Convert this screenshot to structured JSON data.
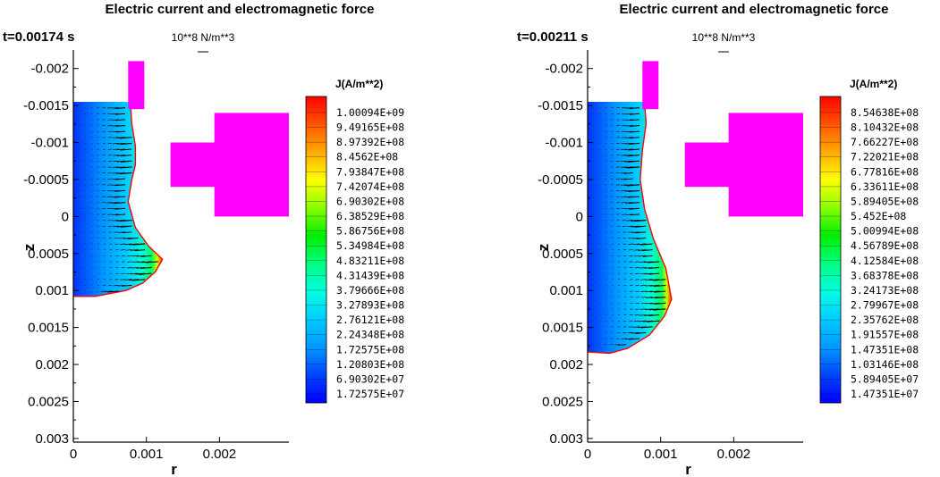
{
  "colors": {
    "coil": "#ff00ff",
    "boundary": "#ff0000",
    "vector": "#000000",
    "colormap": [
      "#0000ff",
      "#0044ff",
      "#0099ff",
      "#00ccff",
      "#00ffe0",
      "#00ff80",
      "#00ee00",
      "#88ff00",
      "#ffff00",
      "#ffaa00",
      "#ff5500",
      "#ff0000"
    ]
  },
  "chart_data": [
    {
      "type": "contour",
      "title": "Electric current and electromagnetic force",
      "time_label": "t=0.00174 s",
      "vector_reference_label": "10**8 N/m**3",
      "xlabel": "r",
      "ylabel": "z",
      "xlim": [
        0,
        0.00295
      ],
      "ylim": [
        0.00305,
        -0.00225
      ],
      "x_ticks": [
        0,
        0.001,
        0.002
      ],
      "x_tick_labels": [
        "0",
        "0.001",
        "0.002"
      ],
      "y_ticks": [
        -0.002,
        -0.0015,
        -0.001,
        -0.0005,
        0,
        0.0005,
        0.001,
        0.0015,
        0.002,
        0.0025,
        0.003
      ],
      "y_tick_labels": [
        "-0.002",
        "-0.0015",
        "-0.001",
        "-0.0005",
        "0",
        "0.0005",
        "0.001",
        "0.0015",
        "0.002",
        "0.0025",
        "0.003"
      ],
      "colorbar_title": "J(A/m**2)",
      "colorbar_levels": [
        "1.00094E+09",
        "9.49165E+08",
        "8.97392E+08",
        "8.4562E+08",
        "7.93847E+08",
        "7.42074E+08",
        "6.90302E+08",
        "6.38529E+08",
        "5.86756E+08",
        "5.34984E+08",
        "4.83211E+08",
        "4.31439E+08",
        "3.79666E+08",
        "3.27893E+08",
        "2.76121E+08",
        "2.24348E+08",
        "1.72575E+08",
        "1.20803E+08",
        "6.90302E+07",
        "1.72575E+07"
      ],
      "droplet_outline": [
        [
          0,
          -0.00155
        ],
        [
          0.00078,
          -0.00155
        ],
        [
          0.0008,
          -0.00125
        ],
        [
          0.00085,
          -0.00095
        ],
        [
          0.00085,
          -0.0007
        ],
        [
          0.0008,
          -0.0005
        ],
        [
          0.00075,
          -0.0002
        ],
        [
          0.00085,
          0.00015
        ],
        [
          0.00103,
          0.0004
        ],
        [
          0.00122,
          0.00058
        ],
        [
          0.00112,
          0.00075
        ],
        [
          0.00095,
          0.0009
        ],
        [
          0.00072,
          0.001
        ],
        [
          0.0003,
          0.00108
        ],
        [
          0,
          0.00108
        ]
      ],
      "coil_rects": [
        {
          "r": [
            0.00075,
            0.00097
          ],
          "z": [
            -0.0021,
            -0.00145
          ]
        },
        {
          "r": [
            0.00133,
            0.00285
          ],
          "z": [
            -0.001,
            -0.0004
          ]
        },
        {
          "r": [
            0.00193,
            0.00295
          ],
          "z": [
            -0.0014,
            0
          ]
        }
      ]
    },
    {
      "type": "contour",
      "title": "Electric current and electromagnetic force",
      "time_label": "t=0.00211 s",
      "vector_reference_label": "10**8 N/m**3",
      "xlabel": "r",
      "ylabel": "z",
      "xlim": [
        0,
        0.00295
      ],
      "ylim": [
        0.00305,
        -0.00225
      ],
      "x_ticks": [
        0,
        0.001,
        0.002
      ],
      "x_tick_labels": [
        "0",
        "0.001",
        "0.002"
      ],
      "y_ticks": [
        -0.002,
        -0.0015,
        -0.001,
        -0.0005,
        0,
        0.0005,
        0.001,
        0.0015,
        0.002,
        0.0025,
        0.003
      ],
      "y_tick_labels": [
        "-0.002",
        "-0.0015",
        "-0.001",
        "-0.0005",
        "0",
        "0.0005",
        "0.001",
        "0.0015",
        "0.002",
        "0.0025",
        "0.003"
      ],
      "colorbar_title": "J(A/m**2)",
      "colorbar_levels": [
        "8.54638E+08",
        "8.10432E+08",
        "7.66227E+08",
        "7.22021E+08",
        "6.77816E+08",
        "6.33611E+08",
        "5.89405E+08",
        "5.452E+08",
        "5.00994E+08",
        "4.56789E+08",
        "4.12584E+08",
        "3.68378E+08",
        "3.24173E+08",
        "2.79967E+08",
        "2.35762E+08",
        "1.91557E+08",
        "1.47351E+08",
        "1.03146E+08",
        "5.89405E+07",
        "1.47351E+07"
      ],
      "droplet_outline": [
        [
          0,
          -0.00155
        ],
        [
          0.00078,
          -0.00155
        ],
        [
          0.0008,
          -0.00125
        ],
        [
          0.00075,
          -0.0009
        ],
        [
          0.00072,
          -0.0005
        ],
        [
          0.00078,
          -0.0001
        ],
        [
          0.0009,
          0.0003
        ],
        [
          0.00107,
          0.0007
        ],
        [
          0.00115,
          0.00112
        ],
        [
          0.00105,
          0.00135
        ],
        [
          0.00085,
          0.0016
        ],
        [
          0.00055,
          0.00178
        ],
        [
          0.0003,
          0.00185
        ],
        [
          0,
          0.00183
        ]
      ],
      "coil_rects": [
        {
          "r": [
            0.00075,
            0.00097
          ],
          "z": [
            -0.0021,
            -0.00145
          ]
        },
        {
          "r": [
            0.00133,
            0.00285
          ],
          "z": [
            -0.001,
            -0.0004
          ]
        },
        {
          "r": [
            0.00193,
            0.00295
          ],
          "z": [
            -0.0014,
            0
          ]
        }
      ]
    }
  ]
}
